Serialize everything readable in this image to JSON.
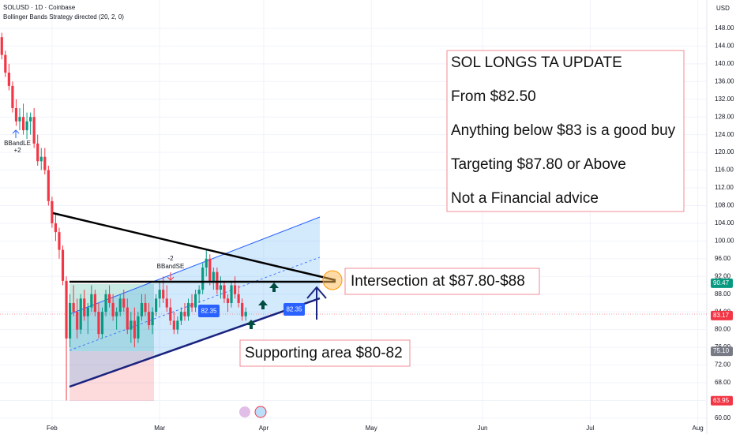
{
  "chart_data": {
    "type": "candlestick",
    "symbol": "SOLUSD · 1D · Coinbase",
    "indicator": "Bollinger Bands Strategy directed (20, 2, 0)",
    "currency": "USD",
    "open": [
      146,
      142,
      138,
      135,
      130,
      127,
      128,
      125,
      127,
      128,
      122,
      118,
      119,
      116,
      109,
      104,
      102,
      98,
      91,
      78,
      86,
      84,
      80,
      87,
      83,
      85,
      88,
      84,
      79,
      84,
      88,
      86,
      83,
      84,
      87,
      85,
      80,
      82,
      78,
      83,
      86,
      84,
      81,
      84,
      87,
      89,
      87,
      85,
      82,
      80,
      82,
      84,
      83,
      86,
      85,
      88,
      89,
      94,
      96,
      91,
      93,
      89,
      90,
      87,
      86,
      90,
      88,
      86,
      83
    ],
    "high": [
      147,
      143,
      140,
      136,
      132,
      130,
      131,
      129,
      129,
      130,
      124,
      121,
      121,
      117,
      110,
      106,
      103,
      99,
      92,
      88,
      90,
      87,
      88,
      89,
      86,
      90,
      89,
      86,
      85,
      89,
      90,
      88,
      85,
      88,
      89,
      87,
      84,
      85,
      84,
      88,
      88,
      86,
      85,
      88,
      91,
      92,
      90,
      87,
      84,
      83,
      85,
      86,
      87,
      88,
      89,
      90,
      95,
      98,
      97,
      94,
      94,
      92,
      91,
      88,
      91,
      92,
      90,
      87,
      85
    ],
    "low": [
      141,
      137,
      134,
      129,
      126,
      125,
      124,
      123,
      124,
      121,
      117,
      116,
      115,
      108,
      103,
      100,
      96,
      90,
      64,
      76,
      83,
      78,
      79,
      82,
      79,
      84,
      83,
      78,
      78,
      83,
      85,
      82,
      80,
      83,
      84,
      79,
      77,
      76,
      77,
      82,
      83,
      80,
      79,
      83,
      85,
      86,
      84,
      81,
      79,
      79,
      81,
      82,
      82,
      84,
      84,
      86,
      88,
      92,
      90,
      89,
      88,
      87,
      86,
      84,
      85,
      87,
      85,
      82,
      82
    ],
    "close": [
      142,
      138,
      135,
      130,
      127,
      128,
      125,
      127,
      128,
      122,
      118,
      119,
      116,
      109,
      104,
      102,
      98,
      91,
      78,
      86,
      84,
      80,
      87,
      83,
      85,
      88,
      84,
      79,
      84,
      88,
      86,
      83,
      84,
      87,
      85,
      80,
      82,
      78,
      83,
      86,
      84,
      81,
      84,
      87,
      89,
      87,
      85,
      82,
      80,
      82,
      84,
      83,
      86,
      85,
      88,
      89,
      94,
      96,
      91,
      93,
      89,
      90,
      87,
      86,
      90,
      88,
      86,
      83,
      84
    ],
    "up_color": "#089981",
    "down_color": "#f23645",
    "xlim": [
      -0.5,
      196.5
    ],
    "xticks": [
      {
        "value": 14,
        "label": "Feb"
      },
      {
        "value": 44,
        "label": "Mar"
      },
      {
        "value": 73,
        "label": "Apr"
      },
      {
        "value": 103,
        "label": "May"
      },
      {
        "value": 134,
        "label": "Jun"
      },
      {
        "value": 164,
        "label": "Jul"
      },
      {
        "value": 194,
        "label": "Aug"
      }
    ],
    "ylim": [
      58.2,
      154.4
    ],
    "yticks": [
      {
        "value": 60,
        "label": "60.00"
      },
      {
        "value": 64,
        "label": "64.00"
      },
      {
        "value": 68,
        "label": "68.00"
      },
      {
        "value": 72,
        "label": "72.00"
      },
      {
        "value": 76,
        "label": "76.00"
      },
      {
        "value": 80,
        "label": "80.00"
      },
      {
        "value": 84,
        "label": "84.00"
      },
      {
        "value": 88,
        "label": "88.00"
      },
      {
        "value": 92,
        "label": "92.00"
      },
      {
        "value": 96,
        "label": "96.00"
      },
      {
        "value": 100,
        "label": "100.00"
      },
      {
        "value": 104,
        "label": "104.00"
      },
      {
        "value": 108,
        "label": "108.00"
      },
      {
        "value": 112,
        "label": "112.00"
      },
      {
        "value": 116,
        "label": "116.00"
      },
      {
        "value": 120,
        "label": "120.00"
      },
      {
        "value": 124,
        "label": "124.00"
      },
      {
        "value": 128,
        "label": "128.00"
      },
      {
        "value": 132,
        "label": "132.00"
      },
      {
        "value": 136,
        "label": "136.00"
      },
      {
        "value": 140,
        "label": "140.00"
      },
      {
        "value": 144,
        "label": "144.00"
      },
      {
        "value": 148,
        "label": "148.00"
      }
    ],
    "price_badges": [
      {
        "value": 90.47,
        "color": "#089981"
      },
      {
        "value": 83.17,
        "color": "#f23645"
      },
      {
        "value": 75.1,
        "label": "75.10",
        "color": "#787b86"
      },
      {
        "value": 63.95,
        "color": "#f23645"
      }
    ],
    "signals": {
      "long": "BBandLE",
      "long_qty": "+2",
      "short": "BBandSE",
      "short_qty": "-2"
    },
    "price_tags": [
      82.35,
      82.35
    ],
    "note_lines": [
      "SOL LONGS TA UPDATE",
      "From $82.50",
      "Anything below $83 is a good buy",
      "Targeting $87.80 or Above",
      "Not a Financial advice"
    ],
    "intersection": "Intersection at $87.80-$88",
    "support": "Supporting area $80-82"
  }
}
